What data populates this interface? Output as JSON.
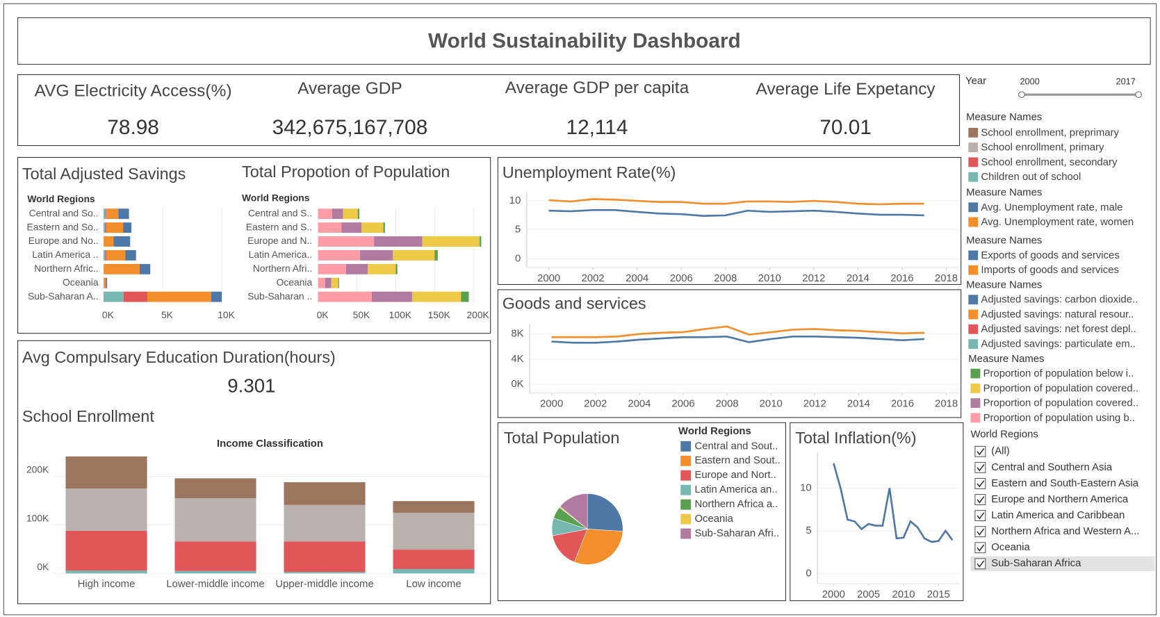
{
  "title": "World Sustainability Dashboard",
  "kpis": [
    {
      "label": "AVG Electricity Access(%)",
      "value": "78.98"
    },
    {
      "label": "Average GDP",
      "value": "342,675,167,708"
    },
    {
      "label": "Average GDP per capita",
      "value": "12,114"
    },
    {
      "label": "Average Life Expetancy",
      "value": "70.01"
    }
  ],
  "education": {
    "title": "Avg Compulsary Education Duration(hours)",
    "value": "9.301"
  },
  "year_filter": {
    "label": "Year",
    "range": [
      2000,
      2017
    ]
  },
  "region_filter": {
    "title": "World Regions",
    "options": [
      "(All)",
      "Central and Southern Asia",
      "Eastern and South-Eastern Asia",
      "Europe and Northern America",
      "Latin America and Caribbean",
      "Northern Africa and Western A...",
      "Oceania",
      "Sub-Saharan Africa"
    ]
  },
  "chart_data": [
    {
      "type": "hbar",
      "title": "Total Adjusted Savings",
      "y_label": "World Regions",
      "legend_title": "Measure Names",
      "categories": [
        "Central and So..",
        "Eastern and So..",
        "Europe and No..",
        "Latin America ..",
        "Northern Afric..",
        "Oceania",
        "Sub-Saharan A.."
      ],
      "series": [
        {
          "name": "Adjusted savings: carbon dioxide..",
          "color": "#4e79a7",
          "values": [
            900,
            700,
            1400,
            900,
            900,
            100,
            900
          ]
        },
        {
          "name": "Adjusted savings: natural resour..",
          "color": "#f28e2b",
          "values": [
            1000,
            1400,
            800,
            1600,
            3000,
            150,
            5400
          ]
        },
        {
          "name": "Adjusted savings: net forest depl..",
          "color": "#e15759",
          "values": [
            50,
            100,
            0,
            100,
            0,
            0,
            2000
          ]
        },
        {
          "name": "Adjusted savings: particulate em..",
          "color": "#76b7b2",
          "values": [
            200,
            150,
            50,
            150,
            50,
            50,
            1700
          ]
        }
      ],
      "xlim": [
        0,
        10700
      ],
      "xticks": [
        {
          "value": 0,
          "label": "0K"
        },
        {
          "value": 5000,
          "label": "5K"
        },
        {
          "value": 10000,
          "label": "10K"
        }
      ]
    },
    {
      "type": "hbar",
      "title": "Total Propotion of Population",
      "y_label": "World Regions",
      "legend_title": "Measure Names",
      "categories": [
        "Central and S..",
        "Eastern and S..",
        "Europe and N..",
        "Latin America..",
        "Northern Afri..",
        "Oceania",
        "Sub-Saharan .."
      ],
      "series": [
        {
          "name": "Proportion of population below i..",
          "color": "#59a14f",
          "values": [
            2000,
            2000,
            2000,
            4000,
            2000,
            1000,
            10000
          ]
        },
        {
          "name": "Proportion of population covered..",
          "color": "#edc948",
          "values": [
            19000,
            28000,
            74000,
            54000,
            36000,
            9000,
            63000
          ]
        },
        {
          "name": "Proportion of population covered..",
          "color": "#b07aa1",
          "values": [
            14000,
            26000,
            62000,
            42000,
            28000,
            8000,
            52000
          ]
        },
        {
          "name": "Proportion of population using b..",
          "color": "#ff9da7",
          "values": [
            18000,
            30000,
            72000,
            54000,
            36000,
            9000,
            69000
          ]
        }
      ],
      "xlim": [
        0,
        212000
      ],
      "xticks": [
        {
          "value": 0,
          "label": "0K"
        },
        {
          "value": 50000,
          "label": "50K"
        },
        {
          "value": 100000,
          "label": "100K"
        },
        {
          "value": 150000,
          "label": "150K"
        },
        {
          "value": 200000,
          "label": "200K"
        }
      ]
    },
    {
      "type": "line",
      "title": "Unemployment Rate(%)",
      "legend_title": "Measure Names",
      "x": [
        2000,
        2001,
        2002,
        2003,
        2004,
        2005,
        2006,
        2007,
        2008,
        2009,
        2010,
        2011,
        2012,
        2013,
        2014,
        2015,
        2016,
        2017
      ],
      "series": [
        {
          "name": "Avg. Unemployment rate, male",
          "color": "#4e79a7",
          "values": [
            8.3,
            8.2,
            8.4,
            8.4,
            8.1,
            7.8,
            7.7,
            7.4,
            7.5,
            8.3,
            8.1,
            8.2,
            8.3,
            8.1,
            7.8,
            7.6,
            7.6,
            7.5
          ]
        },
        {
          "name": "Avg. Unemployment rate, women",
          "color": "#f28e2b",
          "values": [
            10.1,
            9.9,
            10.3,
            10.2,
            10.0,
            9.8,
            9.8,
            9.5,
            9.5,
            9.9,
            9.9,
            9.8,
            10.0,
            9.8,
            9.5,
            9.4,
            9.5,
            9.5
          ]
        }
      ],
      "xlim": [
        1999,
        2018.6
      ],
      "xticks": [
        2000,
        2002,
        2004,
        2006,
        2008,
        2010,
        2012,
        2014,
        2016,
        2018
      ],
      "ylim": [
        -1.5,
        11.5
      ],
      "yticks": [
        0,
        5,
        10
      ]
    },
    {
      "type": "line",
      "title": "Goods and services",
      "legend_title": "Measure Names",
      "x": [
        2000,
        2001,
        2002,
        2003,
        2004,
        2005,
        2006,
        2007,
        2008,
        2009,
        2010,
        2011,
        2012,
        2013,
        2014,
        2015,
        2016,
        2017
      ],
      "series": [
        {
          "name": "Exports of goods and services",
          "color": "#4e79a7",
          "values": [
            6800,
            6600,
            6600,
            6800,
            7100,
            7300,
            7500,
            7500,
            7600,
            6700,
            7200,
            7600,
            7600,
            7500,
            7400,
            7200,
            7000,
            7200
          ]
        },
        {
          "name": "Imports of goods and services",
          "color": "#f28e2b",
          "values": [
            7500,
            7500,
            7500,
            7600,
            8000,
            8200,
            8300,
            8800,
            9200,
            7900,
            8300,
            8700,
            8800,
            8600,
            8500,
            8300,
            8100,
            8200
          ]
        }
      ],
      "xlim": [
        1999,
        2018.6
      ],
      "xticks": [
        2000,
        2002,
        2004,
        2006,
        2008,
        2010,
        2012,
        2014,
        2016,
        2018
      ],
      "ylim": [
        -1400,
        9650
      ],
      "yticks": [
        {
          "value": 0,
          "label": "0K"
        },
        {
          "value": 4000,
          "label": "4K"
        },
        {
          "value": 8000,
          "label": "8K"
        }
      ]
    },
    {
      "type": "pie",
      "title": "Total Population",
      "legend_title": "World Regions",
      "categories": [
        "Central and Sout..",
        "Eastern and Sout..",
        "Europe and Nort..",
        "Latin America an..",
        "Northern Africa a..",
        "Oceania",
        "Sub-Saharan Afri.."
      ],
      "values": [
        26,
        30,
        16,
        8,
        5.5,
        0.5,
        14
      ],
      "colors": [
        "#4e79a7",
        "#f28e2b",
        "#e15759",
        "#76b7b2",
        "#59a14f",
        "#edc948",
        "#b07aa1"
      ]
    },
    {
      "type": "line",
      "title": "Total Inflation(%)",
      "x": [
        2000,
        2001,
        2002,
        2003,
        2004,
        2005,
        2006,
        2007,
        2008,
        2009,
        2010,
        2011,
        2012,
        2013,
        2014,
        2015,
        2016,
        2017
      ],
      "series": [
        {
          "color": "#4e79a7",
          "values": [
            12.9,
            10.0,
            6.3,
            6.1,
            5.2,
            5.8,
            5.6,
            5.6,
            10.0,
            4.1,
            4.2,
            6.1,
            5.4,
            4.1,
            3.7,
            3.8,
            5.0,
            3.9
          ]
        }
      ],
      "xlim": [
        1997.7,
        2018
      ],
      "xticks": [
        2000,
        2005,
        2010,
        2015
      ],
      "ylim": [
        -1.2,
        14.2
      ],
      "yticks": [
        0,
        5,
        10
      ]
    },
    {
      "type": "vbar",
      "title": "School Enrollment",
      "x_label": "Income Classification",
      "legend_title": "Measure Names",
      "categories": [
        "High income",
        "Lower-middle income",
        "Upper-middle income",
        "Low income"
      ],
      "series": [
        {
          "name": "School enrollment, preprimary",
          "color": "#9c755f",
          "values": [
            66000,
            41000,
            47000,
            24000
          ]
        },
        {
          "name": "School enrollment, primary",
          "color": "#bab0ac",
          "values": [
            87000,
            89000,
            75000,
            76000
          ]
        },
        {
          "name": "School enrollment, secondary",
          "color": "#e15759",
          "values": [
            82000,
            61000,
            63000,
            40000
          ]
        },
        {
          "name": "Children out of school",
          "color": "#76b7b2",
          "values": [
            6000,
            5000,
            3000,
            9000
          ]
        }
      ],
      "ylim": [
        0,
        268000
      ],
      "yticks": [
        {
          "value": 0,
          "label": "0K"
        },
        {
          "value": 100000,
          "label": "100K"
        },
        {
          "value": 200000,
          "label": "200K"
        }
      ]
    }
  ]
}
